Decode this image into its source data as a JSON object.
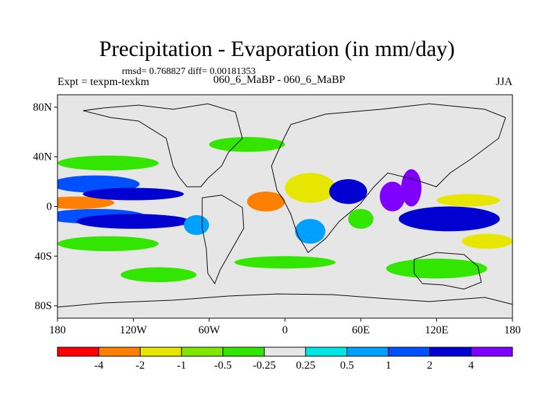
{
  "title": "Precipitation - Evaporation (in mm/day)",
  "stats_line": "rmsd= 0.768827 diff= 0.00181353",
  "expt_label": "Expt = texpm-texkm",
  "center_label": "060_6_MaBP - 060_6_MaBP",
  "season_label": "JJA",
  "axes": {
    "lat_labels": [
      {
        "text": "80N",
        "lat": 80
      },
      {
        "text": "40N",
        "lat": 40
      },
      {
        "text": "0",
        "lat": 0
      },
      {
        "text": "40S",
        "lat": -40
      },
      {
        "text": "80S",
        "lat": -80
      }
    ],
    "lon_labels": [
      {
        "text": "180",
        "lon": -180
      },
      {
        "text": "120W",
        "lon": -120
      },
      {
        "text": "60W",
        "lon": -60
      },
      {
        "text": "0",
        "lon": 0
      },
      {
        "text": "60E",
        "lon": 60
      },
      {
        "text": "120E",
        "lon": 120
      },
      {
        "text": "180",
        "lon": 180
      }
    ]
  },
  "colorbar": {
    "colors": [
      "#ff0000",
      "#ff8000",
      "#e6e600",
      "#80e600",
      "#33e600",
      "#e6e6e6",
      "#00e6e6",
      "#00a0ff",
      "#0050ff",
      "#0000d0",
      "#8000ff"
    ],
    "labels": [
      "-4",
      "-2",
      "-1",
      "-0.5",
      "-0.25",
      "0.25",
      "0.5",
      "1",
      "2",
      "4"
    ]
  },
  "fields": [
    {
      "lon": -165,
      "lat": 3,
      "rx": 30,
      "ry": 5,
      "level": 1
    },
    {
      "lon": -150,
      "lat": -8,
      "rx": 40,
      "ry": 6,
      "level": 8
    },
    {
      "lon": -150,
      "lat": 18,
      "rx": 35,
      "ry": 7,
      "level": 8
    },
    {
      "lon": -120,
      "lat": 10,
      "rx": 40,
      "ry": 5,
      "level": 9
    },
    {
      "lon": -120,
      "lat": -12,
      "rx": 45,
      "ry": 6,
      "level": 9
    },
    {
      "lon": -140,
      "lat": 35,
      "rx": 40,
      "ry": 6,
      "level": 4
    },
    {
      "lon": -140,
      "lat": -30,
      "rx": 40,
      "ry": 6,
      "level": 4
    },
    {
      "lon": -15,
      "lat": 4,
      "rx": 15,
      "ry": 8,
      "level": 1
    },
    {
      "lon": 20,
      "lat": 15,
      "rx": 20,
      "ry": 12,
      "level": 2
    },
    {
      "lon": 50,
      "lat": 12,
      "rx": 15,
      "ry": 10,
      "level": 9
    },
    {
      "lon": 60,
      "lat": -10,
      "rx": 10,
      "ry": 8,
      "level": 4
    },
    {
      "lon": 85,
      "lat": 8,
      "rx": 10,
      "ry": 12,
      "level": 10
    },
    {
      "lon": 100,
      "lat": 15,
      "rx": 8,
      "ry": 15,
      "level": 10
    },
    {
      "lon": 130,
      "lat": -10,
      "rx": 40,
      "ry": 10,
      "level": 9
    },
    {
      "lon": 145,
      "lat": 5,
      "rx": 25,
      "ry": 5,
      "level": 2
    },
    {
      "lon": 160,
      "lat": -28,
      "rx": 20,
      "ry": 6,
      "level": 2
    },
    {
      "lon": -30,
      "lat": 50,
      "rx": 30,
      "ry": 6,
      "level": 4
    },
    {
      "lon": 0,
      "lat": -45,
      "rx": 40,
      "ry": 5,
      "level": 4
    },
    {
      "lon": 120,
      "lat": -50,
      "rx": 40,
      "ry": 8,
      "level": 4
    },
    {
      "lon": -100,
      "lat": -55,
      "rx": 30,
      "ry": 6,
      "level": 4
    },
    {
      "lon": -70,
      "lat": -15,
      "rx": 10,
      "ry": 8,
      "level": 7
    },
    {
      "lon": 20,
      "lat": -20,
      "rx": 12,
      "ry": 10,
      "level": 7
    }
  ]
}
